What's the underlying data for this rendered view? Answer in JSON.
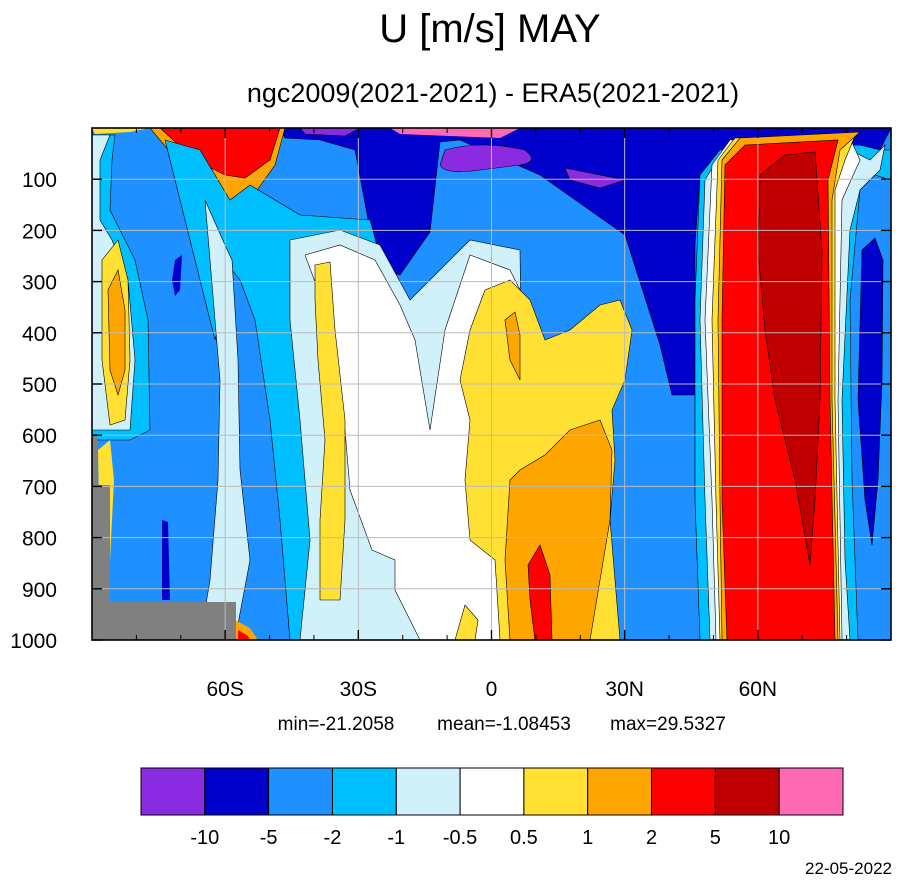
{
  "chart_data": {
    "type": "heatmap",
    "title": "U [m/s] MAY",
    "subtitle": "ngc2009(2021-2021) - ERA5(2021-2021)",
    "x_ticks": [
      {
        "value": -60,
        "label": "60S"
      },
      {
        "value": -30,
        "label": "30S"
      },
      {
        "value": 0,
        "label": "0"
      },
      {
        "value": 30,
        "label": "30N"
      },
      {
        "value": 60,
        "label": "60N"
      }
    ],
    "y_ticks": [
      {
        "value": 100,
        "label": "100"
      },
      {
        "value": 200,
        "label": "200"
      },
      {
        "value": 300,
        "label": "300"
      },
      {
        "value": 400,
        "label": "400"
      },
      {
        "value": 500,
        "label": "500"
      },
      {
        "value": 600,
        "label": "600"
      },
      {
        "value": 700,
        "label": "700"
      },
      {
        "value": 800,
        "label": "800"
      },
      {
        "value": 900,
        "label": "900"
      },
      {
        "value": 1000,
        "label": "1000"
      }
    ],
    "xlim": [
      -90,
      90
    ],
    "ylim": [
      1000,
      0
    ],
    "grid": true,
    "stats": {
      "min_label": "min=-21.2058",
      "mean_label": "mean=-1.08453",
      "max_label": "max=29.5327"
    },
    "levels": [
      -10,
      -5,
      -2,
      -1,
      -0.5,
      0.5,
      1,
      2,
      5,
      10
    ],
    "level_labels": [
      "-10",
      "-5",
      "-2",
      "-1",
      "-0.5",
      "0.5",
      "1",
      "2",
      "5",
      "10"
    ],
    "colors": [
      "#8a2be2",
      "#0000cd",
      "#1e90ff",
      "#00bfff",
      "#d0f0fa",
      "#ffffff",
      "#ffe033",
      "#ffa500",
      "#ff0000",
      "#c00000",
      "#ff69b4"
    ],
    "missing_color": "#808080",
    "date": "22-05-2022"
  }
}
